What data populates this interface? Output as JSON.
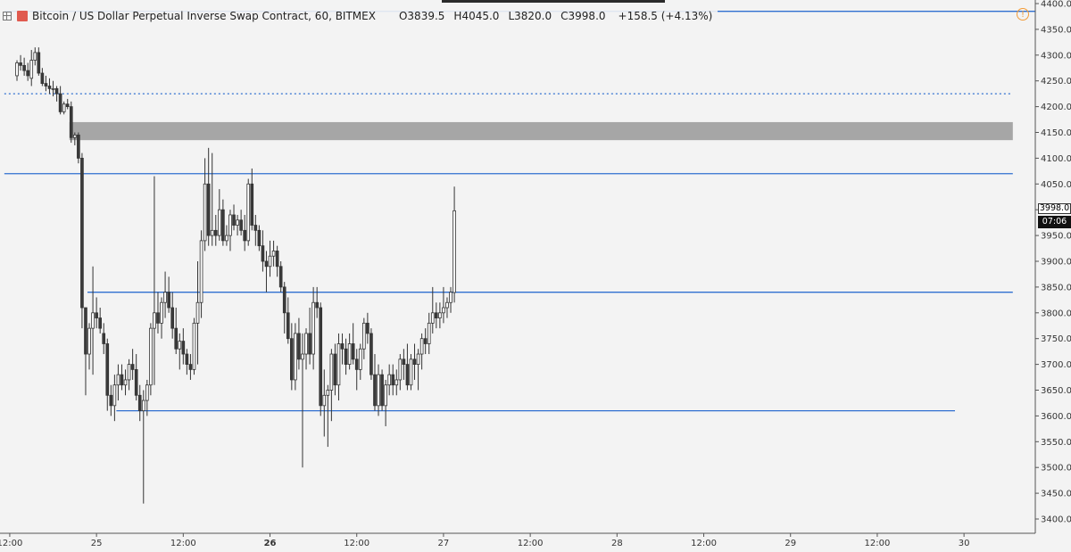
{
  "header": {
    "symbol_title": "Bitcoin / US Dollar Perpetual Inverse Swap Contract, 60, BITMEX",
    "open_label": "O",
    "open_value": "3839.5",
    "high_label": "H",
    "high_value": "4045.0",
    "low_label": "L",
    "low_value": "3820.0",
    "close_label": "C",
    "close_value": "3998.0",
    "change_text": "+158.5 (+4.13%)",
    "warning_glyph": "!"
  },
  "price_tag": {
    "last": "3998.0",
    "timer": "07:06"
  },
  "colors": {
    "up_fill": "#ffffff",
    "down_fill": "#3a3a3a",
    "wick": "#333333",
    "hline": "#2f6fd0",
    "dotted": "#2f6fd0",
    "zone": "#a6a6a6",
    "bg": "#f3f3f3"
  },
  "chart_data": {
    "type": "candlestick",
    "timeframe": "60",
    "ylim": [
      3380,
      4450
    ],
    "y_ticks": [
      3400,
      3450,
      3500,
      3550,
      3600,
      3650,
      3700,
      3750,
      3800,
      3850,
      3900,
      3950,
      4000,
      4050,
      4100,
      4150,
      4200,
      4250,
      4300,
      4350,
      4400
    ],
    "y_tick_labels": [
      "3400.0",
      "3450.0",
      "3500.0",
      "3550.0",
      "3600.0",
      "3650.0",
      "3700.0",
      "3750.0",
      "3800.0",
      "3850.0",
      "3900.0",
      "3950.0",
      "4000.0",
      "4050.0",
      "4100.0",
      "4150.0",
      "4200.0",
      "4250.0",
      "4300.0",
      "4350.0",
      "4400.0"
    ],
    "x_ticks": [
      {
        "label": "12:00",
        "bold": false,
        "bar": -2
      },
      {
        "label": "25",
        "bold": false,
        "bar": 22
      },
      {
        "label": "12:00",
        "bold": false,
        "bar": 46
      },
      {
        "label": "26",
        "bold": true,
        "bar": 70
      },
      {
        "label": "12:00",
        "bold": false,
        "bar": 94
      },
      {
        "label": "27",
        "bold": false,
        "bar": 118
      },
      {
        "label": "12:00",
        "bold": false,
        "bar": 142
      },
      {
        "label": "28",
        "bold": false,
        "bar": 166
      },
      {
        "label": "12:00",
        "bold": false,
        "bar": 190
      },
      {
        "label": "29",
        "bold": false,
        "bar": 214
      },
      {
        "label": "12:00",
        "bold": false,
        "bar": 238
      },
      {
        "label": "30",
        "bold": false,
        "bar": 262
      }
    ],
    "candles": [
      [
        4260,
        4290,
        4250,
        4285
      ],
      [
        4285,
        4300,
        4270,
        4280
      ],
      [
        4280,
        4295,
        4260,
        4270
      ],
      [
        4270,
        4285,
        4250,
        4260
      ],
      [
        4255,
        4310,
        4240,
        4290
      ],
      [
        4290,
        4315,
        4280,
        4305
      ],
      [
        4305,
        4315,
        4260,
        4265
      ],
      [
        4265,
        4275,
        4240,
        4245
      ],
      [
        4245,
        4260,
        4230,
        4240
      ],
      [
        4240,
        4255,
        4225,
        4235
      ],
      [
        4235,
        4250,
        4220,
        4235
      ],
      [
        4235,
        4240,
        4210,
        4225
      ],
      [
        4225,
        4240,
        4185,
        4190
      ],
      [
        4190,
        4210,
        4185,
        4205
      ],
      [
        4205,
        4215,
        4195,
        4200
      ],
      [
        4200,
        4210,
        4130,
        4140
      ],
      [
        4140,
        4150,
        4125,
        4145
      ],
      [
        4145,
        4150,
        4090,
        4100
      ],
      [
        4100,
        4110,
        3770,
        3810
      ],
      [
        3810,
        3810,
        3640,
        3720
      ],
      [
        3720,
        3780,
        3690,
        3770
      ],
      [
        3770,
        3890,
        3680,
        3800
      ],
      [
        3800,
        3830,
        3770,
        3790
      ],
      [
        3790,
        3810,
        3760,
        3770
      ],
      [
        3760,
        3780,
        3720,
        3740
      ],
      [
        3740,
        3750,
        3610,
        3640
      ],
      [
        3640,
        3660,
        3600,
        3620
      ],
      [
        3620,
        3680,
        3590,
        3660
      ],
      [
        3660,
        3700,
        3630,
        3680
      ],
      [
        3680,
        3700,
        3650,
        3660
      ],
      [
        3660,
        3690,
        3640,
        3670
      ],
      [
        3670,
        3710,
        3650,
        3700
      ],
      [
        3700,
        3730,
        3670,
        3690
      ],
      [
        3690,
        3720,
        3630,
        3640
      ],
      [
        3640,
        3660,
        3590,
        3610
      ],
      [
        3610,
        3650,
        3430,
        3630
      ],
      [
        3630,
        3670,
        3600,
        3660
      ],
      [
        3660,
        3780,
        3640,
        3770
      ],
      [
        3770,
        4065,
        3660,
        3800
      ],
      [
        3800,
        3840,
        3760,
        3780
      ],
      [
        3780,
        3830,
        3750,
        3820
      ],
      [
        3820,
        3880,
        3790,
        3840
      ],
      [
        3840,
        3870,
        3800,
        3810
      ],
      [
        3810,
        3840,
        3750,
        3770
      ],
      [
        3770,
        3810,
        3720,
        3730
      ],
      [
        3730,
        3760,
        3690,
        3745
      ],
      [
        3745,
        3770,
        3700,
        3720
      ],
      [
        3720,
        3730,
        3680,
        3700
      ],
      [
        3700,
        3720,
        3670,
        3690
      ],
      [
        3690,
        3790,
        3680,
        3780
      ],
      [
        3780,
        3900,
        3700,
        3820
      ],
      [
        3820,
        3960,
        3790,
        3940
      ],
      [
        3940,
        4100,
        3920,
        4050
      ],
      [
        4050,
        4120,
        3930,
        3950
      ],
      [
        3950,
        4110,
        3930,
        3960
      ],
      [
        3960,
        3990,
        3930,
        3950
      ],
      [
        3950,
        4040,
        3940,
        4000
      ],
      [
        4000,
        4020,
        3930,
        3940
      ],
      [
        3940,
        3970,
        3930,
        3950
      ],
      [
        3950,
        4000,
        3920,
        3990
      ],
      [
        3990,
        4010,
        3960,
        3970
      ],
      [
        3970,
        3990,
        3950,
        3980
      ],
      [
        3980,
        4000,
        3950,
        3960
      ],
      [
        3960,
        3990,
        3920,
        3940
      ],
      [
        3940,
        4060,
        3930,
        4050
      ],
      [
        4050,
        4080,
        3960,
        3970
      ],
      [
        3970,
        3990,
        3930,
        3960
      ],
      [
        3960,
        3970,
        3920,
        3930
      ],
      [
        3930,
        3960,
        3880,
        3900
      ],
      [
        3900,
        3920,
        3840,
        3890
      ],
      [
        3890,
        3940,
        3870,
        3910
      ],
      [
        3910,
        3940,
        3890,
        3920
      ],
      [
        3920,
        3930,
        3870,
        3890
      ],
      [
        3890,
        3900,
        3840,
        3850
      ],
      [
        3850,
        3860,
        3760,
        3800
      ],
      [
        3800,
        3830,
        3740,
        3750
      ],
      [
        3750,
        3780,
        3650,
        3670
      ],
      [
        3670,
        3780,
        3650,
        3760
      ],
      [
        3760,
        3790,
        3690,
        3710
      ],
      [
        3710,
        3760,
        3500,
        3720
      ],
      [
        3720,
        3770,
        3690,
        3760
      ],
      [
        3760,
        3810,
        3700,
        3720
      ],
      [
        3720,
        3850,
        3690,
        3820
      ],
      [
        3820,
        3850,
        3790,
        3810
      ],
      [
        3810,
        3820,
        3600,
        3620
      ],
      [
        3620,
        3690,
        3560,
        3640
      ],
      [
        3640,
        3660,
        3540,
        3650
      ],
      [
        3650,
        3730,
        3590,
        3720
      ],
      [
        3720,
        3740,
        3640,
        3660
      ],
      [
        3660,
        3760,
        3630,
        3740
      ],
      [
        3740,
        3760,
        3700,
        3730
      ],
      [
        3730,
        3750,
        3680,
        3700
      ],
      [
        3700,
        3760,
        3690,
        3740
      ],
      [
        3740,
        3780,
        3700,
        3710
      ],
      [
        3710,
        3730,
        3650,
        3690
      ],
      [
        3690,
        3740,
        3670,
        3730
      ],
      [
        3730,
        3790,
        3710,
        3780
      ],
      [
        3780,
        3800,
        3740,
        3760
      ],
      [
        3760,
        3770,
        3670,
        3680
      ],
      [
        3680,
        3720,
        3610,
        3620
      ],
      [
        3620,
        3700,
        3600,
        3680
      ],
      [
        3680,
        3690,
        3610,
        3620
      ],
      [
        3620,
        3670,
        3580,
        3660
      ],
      [
        3660,
        3700,
        3640,
        3680
      ],
      [
        3680,
        3700,
        3640,
        3660
      ],
      [
        3660,
        3690,
        3640,
        3670
      ],
      [
        3670,
        3720,
        3650,
        3710
      ],
      [
        3710,
        3730,
        3670,
        3700
      ],
      [
        3700,
        3740,
        3650,
        3660
      ],
      [
        3660,
        3720,
        3650,
        3710
      ],
      [
        3710,
        3740,
        3670,
        3700
      ],
      [
        3700,
        3730,
        3650,
        3720
      ],
      [
        3720,
        3760,
        3690,
        3750
      ],
      [
        3750,
        3770,
        3720,
        3740
      ],
      [
        3740,
        3800,
        3720,
        3780
      ],
      [
        3780,
        3850,
        3760,
        3800
      ],
      [
        3800,
        3820,
        3770,
        3790
      ],
      [
        3790,
        3820,
        3770,
        3800
      ],
      [
        3800,
        3850,
        3780,
        3810
      ],
      [
        3810,
        3830,
        3790,
        3820
      ],
      [
        3820,
        3850,
        3800,
        3840
      ],
      [
        3839.5,
        4045,
        3820,
        3998
      ]
    ],
    "horizontal_lines": [
      {
        "price": 4385,
        "from_bar": -3,
        "to_bar": 283
      },
      {
        "price": 4070,
        "from_bar": -3,
        "to_bar": 276
      },
      {
        "price": 3840,
        "from_bar": 20,
        "to_bar": 276
      },
      {
        "price": 3610,
        "from_bar": 28,
        "to_bar": 260
      }
    ],
    "dotted_line": {
      "price": 4225,
      "from_bar": -3,
      "to_bar": 276
    },
    "zone": {
      "price_top": 4170,
      "price_bottom": 4135,
      "from_bar": 15,
      "to_bar": 276
    }
  }
}
